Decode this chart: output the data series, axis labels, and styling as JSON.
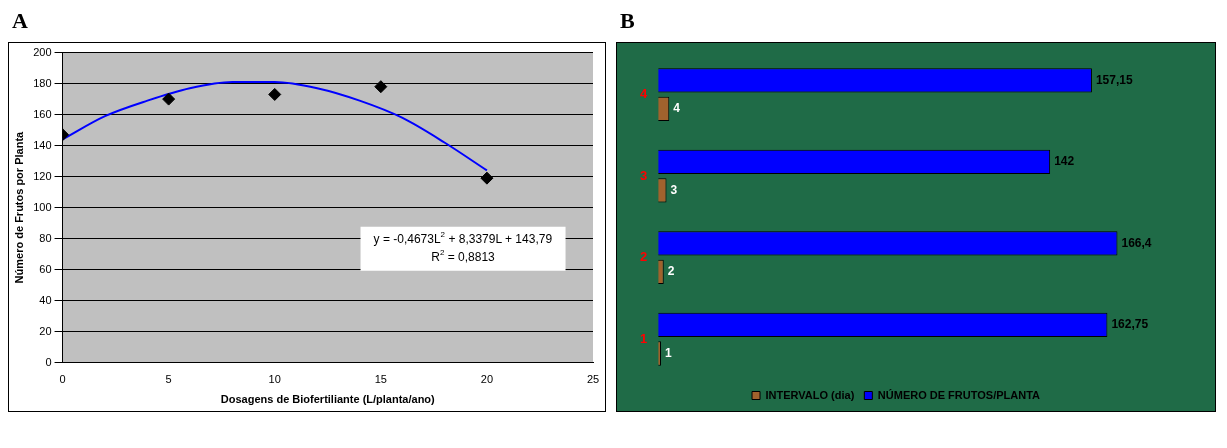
{
  "chart_data": [
    {
      "type": "scatter",
      "title": "A",
      "xlabel": "Dosagens de Biofertiliante (L/planta/ano)",
      "ylabel": "Número de Frutos por Planta",
      "series": [
        {
          "type": "scatter",
          "color": "#000000",
          "marker": "diamond",
          "x": [
            0,
            5,
            10,
            15,
            20
          ],
          "values": [
            147,
            170,
            173,
            178,
            119
          ]
        },
        {
          "type": "line",
          "marker": "none",
          "color": "#0000ff",
          "x": [
            0,
            2,
            4,
            6,
            8,
            10,
            12,
            14,
            16,
            18,
            20
          ],
          "values": [
            144,
            159,
            169,
            177,
            181,
            181,
            177,
            169,
            158,
            142,
            124
          ]
        }
      ],
      "xlim": [
        0,
        25
      ],
      "xticks": [
        0,
        5,
        10,
        15,
        20,
        25
      ],
      "ylim": [
        0,
        200
      ],
      "yticks": [
        0,
        20,
        40,
        60,
        80,
        100,
        120,
        140,
        160,
        180,
        200
      ],
      "grid": "y",
      "annotations": [
        "y = -0,4673L$^{2}$ + 8,3379L + 143,79",
        "R$^{2}$ = 0,8813"
      ]
    },
    {
      "type": "bar",
      "title": "B",
      "orientation": "horizontal",
      "categories": [
        "4",
        "3",
        "2",
        "1"
      ],
      "legend": "bottom",
      "series": [
        {
          "name": "NÚMERO DE FRUTOS/PLANTA",
          "color": "#0000ff",
          "values": [
            157.15,
            142,
            166.4,
            162.75
          ],
          "value_labels": [
            "157,15",
            "142",
            "166,4",
            "162,75"
          ]
        },
        {
          "name": "INTERVALO (dia)",
          "color": "#a0622d",
          "values": [
            4,
            3,
            2,
            1
          ],
          "value_labels": [
            "4",
            "3",
            "2",
            "1"
          ]
        }
      ]
    }
  ]
}
